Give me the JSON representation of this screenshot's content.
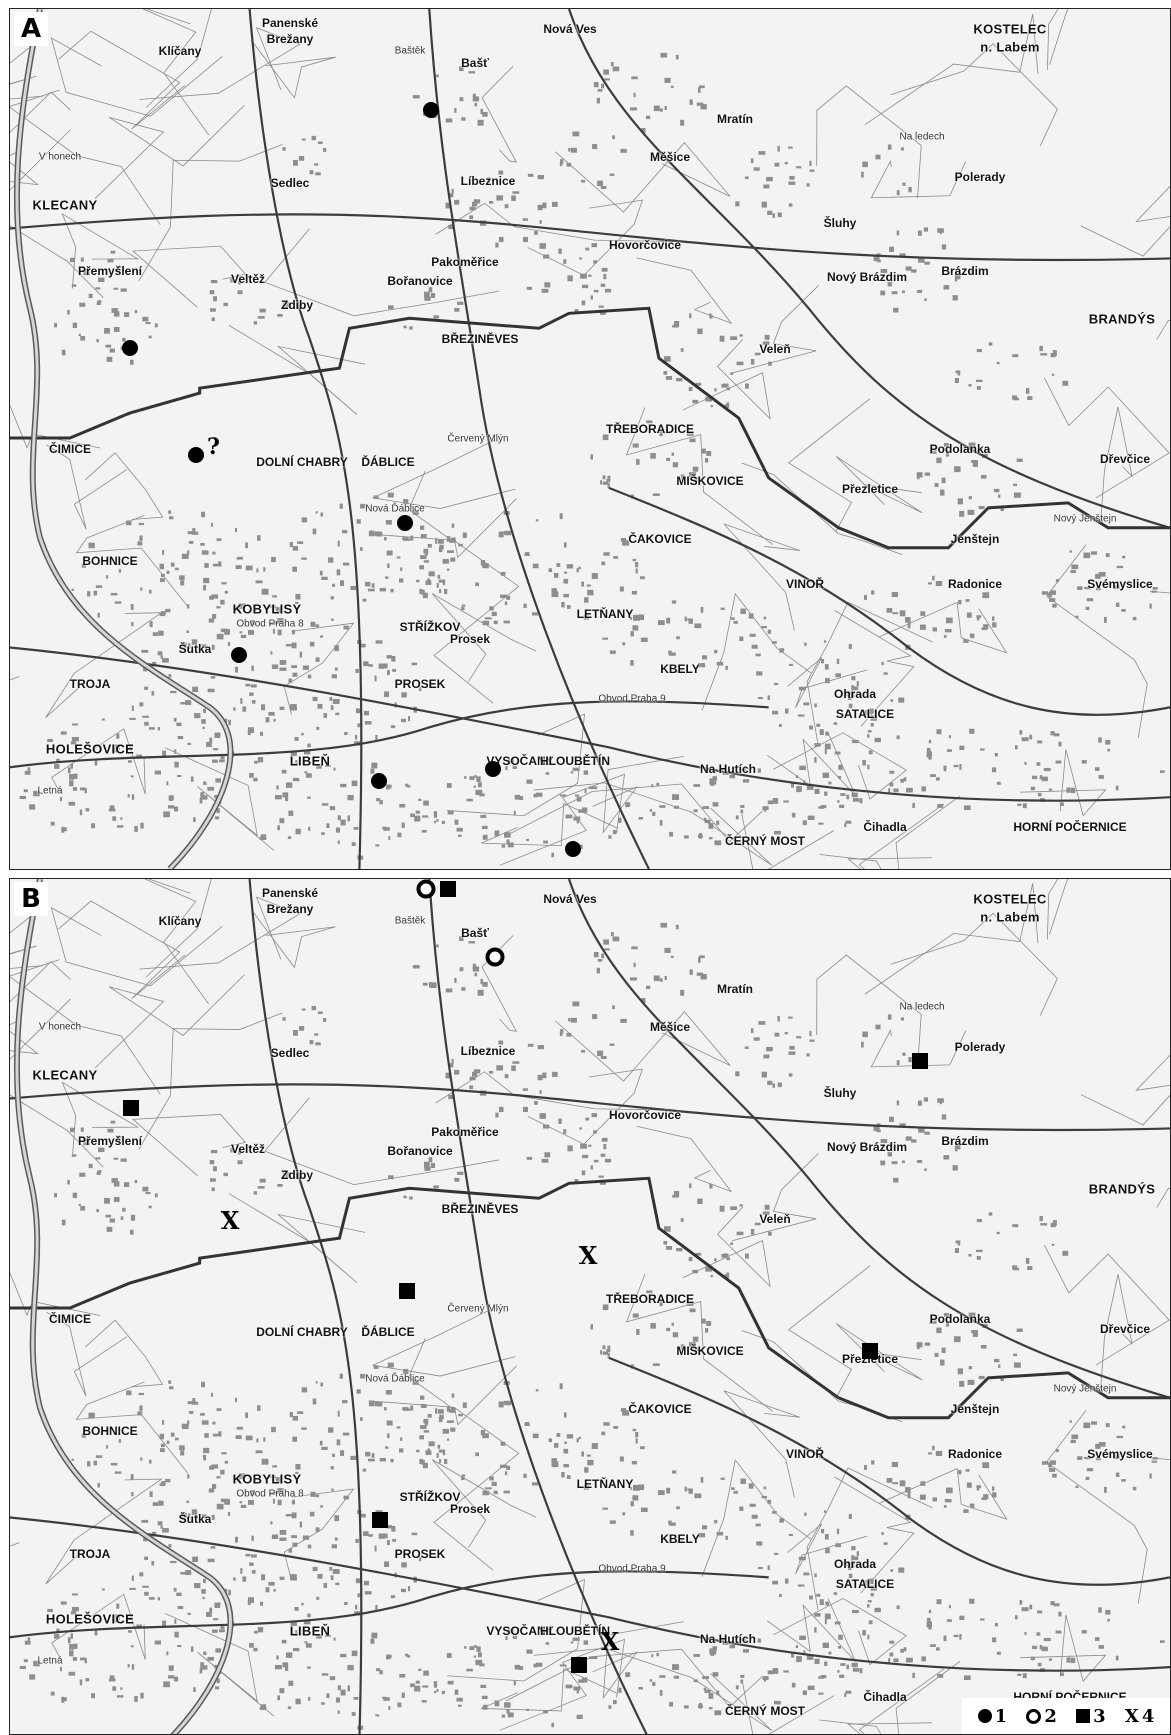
{
  "panels": [
    {
      "id": "A",
      "letter": "A"
    },
    {
      "id": "B",
      "letter": "B"
    }
  ],
  "places": [
    {
      "name": "Panenské",
      "cls": "mid"
    },
    {
      "name": "Brežany",
      "cls": "mid"
    },
    {
      "name": "Klíčany",
      "cls": "mid"
    },
    {
      "name": "Baštěk",
      "cls": "sm"
    },
    {
      "name": "Bašť",
      "cls": "mid"
    },
    {
      "name": "Nová Ves",
      "cls": "mid"
    },
    {
      "name": "KOSTELEC",
      "cls": "big"
    },
    {
      "name": "n. Labem",
      "cls": "big"
    },
    {
      "name": "Mratín",
      "cls": "mid"
    },
    {
      "name": "Měšice",
      "cls": "mid"
    },
    {
      "name": "Líbeznice",
      "cls": "mid"
    },
    {
      "name": "Sedlec",
      "cls": "mid"
    },
    {
      "name": "KLECANY",
      "cls": "big"
    },
    {
      "name": "Hovorčovice",
      "cls": "mid"
    },
    {
      "name": "Šluhy",
      "cls": "mid"
    },
    {
      "name": "Polerady",
      "cls": "mid"
    },
    {
      "name": "Brázdim",
      "cls": "mid"
    },
    {
      "name": "Nový Brázdim",
      "cls": "mid"
    },
    {
      "name": "Přemyšlení",
      "cls": "mid"
    },
    {
      "name": "Veltěž",
      "cls": "mid"
    },
    {
      "name": "Zdiby",
      "cls": "mid"
    },
    {
      "name": "Bořanovice",
      "cls": "mid"
    },
    {
      "name": "Pakoměřice",
      "cls": "mid"
    },
    {
      "name": "BŘEZINĚVES",
      "cls": "mid"
    },
    {
      "name": "Veleň",
      "cls": "mid"
    },
    {
      "name": "BRANDÝS",
      "cls": "big"
    },
    {
      "name": "ČIMICE",
      "cls": "mid"
    },
    {
      "name": "DOLNÍ CHABRY",
      "cls": "mid"
    },
    {
      "name": "ĎÁBLICE",
      "cls": "mid"
    },
    {
      "name": "TŘEBORADICE",
      "cls": "mid"
    },
    {
      "name": "MIŠKOVICE",
      "cls": "mid"
    },
    {
      "name": "Přezletice",
      "cls": "mid"
    },
    {
      "name": "Podolanka",
      "cls": "mid"
    },
    {
      "name": "Dřevčice",
      "cls": "mid"
    },
    {
      "name": "BOHNICE",
      "cls": "mid"
    },
    {
      "name": "ČAKOVICE",
      "cls": "mid"
    },
    {
      "name": "Jenštejn",
      "cls": "mid"
    },
    {
      "name": "KOBYLISY",
      "cls": "big"
    },
    {
      "name": "VINOŘ",
      "cls": "mid"
    },
    {
      "name": "Radonice",
      "cls": "mid"
    },
    {
      "name": "Svémyslice",
      "cls": "mid"
    },
    {
      "name": "LETŇANY",
      "cls": "mid"
    },
    {
      "name": "STŘÍŽKOV",
      "cls": "mid"
    },
    {
      "name": "Prosek",
      "cls": "mid"
    },
    {
      "name": "Šutka",
      "cls": "mid"
    },
    {
      "name": "TROJA",
      "cls": "mid"
    },
    {
      "name": "PROSEK",
      "cls": "mid"
    },
    {
      "name": "KBELY",
      "cls": "mid"
    },
    {
      "name": "Ohrada",
      "cls": "mid"
    },
    {
      "name": "SATALICE",
      "cls": "mid"
    },
    {
      "name": "HOLEŠOVICE",
      "cls": "big"
    },
    {
      "name": "LIBEŇ",
      "cls": "big"
    },
    {
      "name": "VYSOČANY",
      "cls": "mid"
    },
    {
      "name": "HLOUBĚTÍN",
      "cls": "mid"
    },
    {
      "name": "Na Hutích",
      "cls": "mid"
    },
    {
      "name": "Letná",
      "cls": "sm"
    },
    {
      "name": "Čihadla",
      "cls": "mid"
    },
    {
      "name": "ČERNÝ MOST",
      "cls": "mid"
    },
    {
      "name": "HORNÍ POČERNICE",
      "cls": "mid"
    },
    {
      "name": "Obvod Praha 8",
      "cls": "sm"
    },
    {
      "name": "Obvod Praha 9",
      "cls": "sm"
    },
    {
      "name": "V honech",
      "cls": "sm"
    },
    {
      "name": "Na ledech",
      "cls": "sm"
    },
    {
      "name": "Červený Mlýn",
      "cls": "sm"
    },
    {
      "name": "Nová Ďáblice",
      "cls": "sm"
    },
    {
      "name": "Nový Jenštejn",
      "cls": "sm"
    }
  ],
  "markers": {
    "A": [
      {
        "type": "filled",
        "label": "●"
      },
      {
        "type": "filled",
        "label": "●"
      },
      {
        "type": "filled",
        "label": "●",
        "note": "?"
      },
      {
        "type": "filled",
        "label": "●"
      },
      {
        "type": "filled",
        "label": "●"
      },
      {
        "type": "filled",
        "label": "●"
      },
      {
        "type": "filled",
        "label": "●"
      },
      {
        "type": "filled",
        "label": "●"
      }
    ],
    "B": [
      {
        "type": "open",
        "label": "○"
      },
      {
        "type": "square",
        "label": "■"
      },
      {
        "type": "open",
        "label": "○"
      },
      {
        "type": "square",
        "label": "■"
      },
      {
        "type": "square",
        "label": "■"
      },
      {
        "type": "x",
        "label": "X"
      },
      {
        "type": "x",
        "label": "X"
      },
      {
        "type": "square",
        "label": "■"
      },
      {
        "type": "square",
        "label": "■"
      },
      {
        "type": "square",
        "label": "■"
      },
      {
        "type": "x",
        "label": "X"
      },
      {
        "type": "square",
        "label": "■"
      }
    ]
  },
  "legend": [
    {
      "symbol": "filled",
      "label": "1"
    },
    {
      "symbol": "open",
      "label": "2"
    },
    {
      "symbol": "square",
      "label": "3"
    },
    {
      "symbol": "x",
      "label": "4"
    }
  ],
  "colors": {
    "map_bg": "#f3f3f3",
    "built_up": "#9a9a9a",
    "roads": "#444444",
    "boundary": "#555555",
    "marker": "#000000"
  }
}
